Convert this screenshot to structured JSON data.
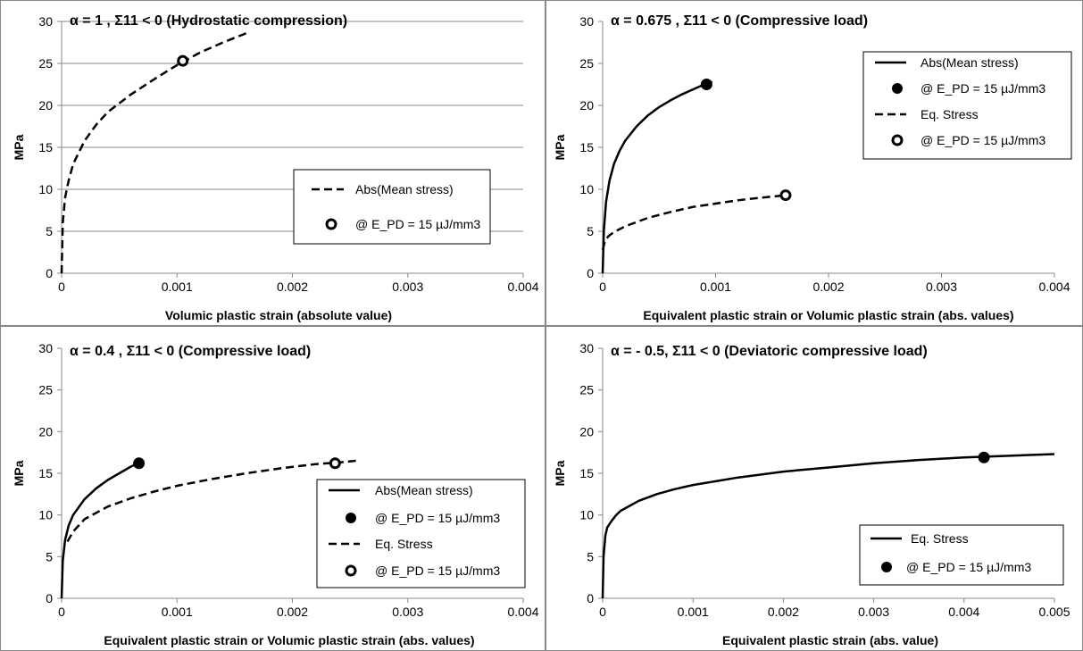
{
  "chart_data": [
    {
      "type": "line",
      "title": "α = 1 , Σ11 < 0   (Hydrostatic compression)",
      "xlabel": "Volumic plastic strain (absolute value)",
      "ylabel": "MPa",
      "xlim": [
        0,
        0.004
      ],
      "ylim": [
        0,
        30
      ],
      "xticks": [
        "0",
        "0.001",
        "0.002",
        "0.003",
        "0.004"
      ],
      "yticks": [
        "0",
        "5",
        "10",
        "15",
        "20",
        "25",
        "30"
      ],
      "grid": true,
      "legend_position": "middle-right",
      "series": [
        {
          "name": "Abs(Mean stress)",
          "style": "dashed",
          "x": [
            0,
            1e-05,
            3e-05,
            6e-05,
            0.0001,
            0.0002,
            0.0003,
            0.0004,
            0.0006,
            0.0008,
            0.001,
            0.0012,
            0.0014,
            0.0016
          ],
          "y": [
            0,
            6,
            9,
            11,
            13,
            15.8,
            17.7,
            19.2,
            21.3,
            23.1,
            24.8,
            26.3,
            27.5,
            28.6
          ]
        }
      ],
      "markers": [
        {
          "name": "@ E_PD = 15 µJ/mm3",
          "style": "open",
          "x": 0.00105,
          "y": 25.3
        }
      ]
    },
    {
      "type": "line",
      "title": "α = 0.675 , Σ11 < 0   (Compressive load)",
      "xlabel": "Equivalent plastic strain or Volumic plastic strain (abs. values)",
      "ylabel": "MPa",
      "xlim": [
        0,
        0.004
      ],
      "ylim": [
        0,
        30
      ],
      "xticks": [
        "0",
        "0.001",
        "0.002",
        "0.003",
        "0.004"
      ],
      "yticks": [
        "0",
        "5",
        "10",
        "15",
        "20",
        "25",
        "30"
      ],
      "grid": false,
      "legend_position": "top-right",
      "series": [
        {
          "name": "Abs(Mean stress)",
          "style": "solid",
          "x": [
            0,
            1e-05,
            3e-05,
            6e-05,
            0.0001,
            0.00015,
            0.0002,
            0.0003,
            0.0004,
            0.0005,
            0.0006,
            0.0007,
            0.0008,
            0.0009,
            0.00097
          ],
          "y": [
            0,
            5,
            8.5,
            11,
            13,
            14.6,
            15.8,
            17.5,
            18.8,
            19.8,
            20.6,
            21.3,
            21.9,
            22.5,
            22.8
          ]
        },
        {
          "name": "Eq. Stress",
          "style": "dashed",
          "x": [
            0,
            2e-05,
            5e-05,
            0.0001,
            0.0002,
            0.0004,
            0.0006,
            0.0008,
            0.001,
            0.0012,
            0.0014,
            0.00163
          ],
          "y": [
            2.8,
            3.8,
            4.4,
            4.9,
            5.6,
            6.6,
            7.3,
            7.9,
            8.3,
            8.7,
            9.0,
            9.3
          ]
        }
      ],
      "markers": [
        {
          "name": "@ E_PD = 15 µJ/mm3",
          "style": "filled",
          "x": 0.00092,
          "y": 22.5
        },
        {
          "name": "@ E_PD = 15 µJ/mm3",
          "style": "open",
          "x": 0.00162,
          "y": 9.3
        }
      ]
    },
    {
      "type": "line",
      "title": "α = 0.4 , Σ11 < 0   (Compressive load)",
      "xlabel": "Equivalent plastic strain or Volumic plastic strain (abs. values)",
      "ylabel": "MPa",
      "xlim": [
        0,
        0.004
      ],
      "ylim": [
        0,
        30
      ],
      "xticks": [
        "0",
        "0.001",
        "0.002",
        "0.003",
        "0.004"
      ],
      "yticks": [
        "0",
        "5",
        "10",
        "15",
        "20",
        "25",
        "30"
      ],
      "grid": false,
      "legend_position": "bottom-right",
      "series": [
        {
          "name": "Abs(Mean stress)",
          "style": "solid",
          "x": [
            0,
            1e-05,
            3e-05,
            6e-05,
            0.0001,
            0.0002,
            0.0003,
            0.0004,
            0.0005,
            0.0006,
            0.00068
          ],
          "y": [
            0,
            4.5,
            7,
            8.7,
            10,
            11.9,
            13.2,
            14.2,
            15,
            15.8,
            16.3
          ]
        },
        {
          "name": "Eq. Stress",
          "style": "dashed",
          "x": [
            5e-05,
            0.0001,
            0.0002,
            0.0004,
            0.0006,
            0.0008,
            0.001,
            0.0013,
            0.0016,
            0.0019,
            0.0022,
            0.0024,
            0.00255
          ],
          "y": [
            6.8,
            8,
            9.5,
            11,
            12,
            12.8,
            13.5,
            14.3,
            15,
            15.6,
            16.1,
            16.3,
            16.5
          ]
        }
      ],
      "markers": [
        {
          "name": "@ E_PD = 15 µJ/mm3",
          "style": "filled",
          "x": 0.00067,
          "y": 16.2
        },
        {
          "name": "@ E_PD = 15 µJ/mm3",
          "style": "open",
          "x": 0.00237,
          "y": 16.2
        }
      ]
    },
    {
      "type": "line",
      "title": "α = - 0.5, Σ11 < 0   (Deviatoric compressive load)",
      "xlabel": "Equivalent plastic strain (abs. value)",
      "ylabel": "MPa",
      "xlim": [
        0,
        0.005
      ],
      "ylim": [
        0,
        30
      ],
      "xticks": [
        "0",
        "0.001",
        "0.002",
        "0.003",
        "0.004",
        "0.005"
      ],
      "yticks": [
        "0",
        "5",
        "10",
        "15",
        "20",
        "25",
        "30"
      ],
      "grid": false,
      "legend_position": "bottom-right",
      "series": [
        {
          "name": "Eq. Stress",
          "style": "solid",
          "x": [
            0,
            1e-05,
            3e-05,
            5e-05,
            0.0001,
            0.00015,
            0.0002,
            0.0004,
            0.0006,
            0.0008,
            0.001,
            0.0015,
            0.002,
            0.0025,
            0.003,
            0.0035,
            0.004,
            0.0045,
            0.005
          ],
          "y": [
            0,
            5,
            7.5,
            8.5,
            9.3,
            10,
            10.5,
            11.7,
            12.5,
            13.1,
            13.6,
            14.5,
            15.2,
            15.7,
            16.2,
            16.6,
            16.9,
            17.1,
            17.3
          ]
        }
      ],
      "markers": [
        {
          "name": "@ E_PD = 15 µJ/mm3",
          "style": "filled",
          "x": 0.00422,
          "y": 16.9
        }
      ]
    }
  ]
}
